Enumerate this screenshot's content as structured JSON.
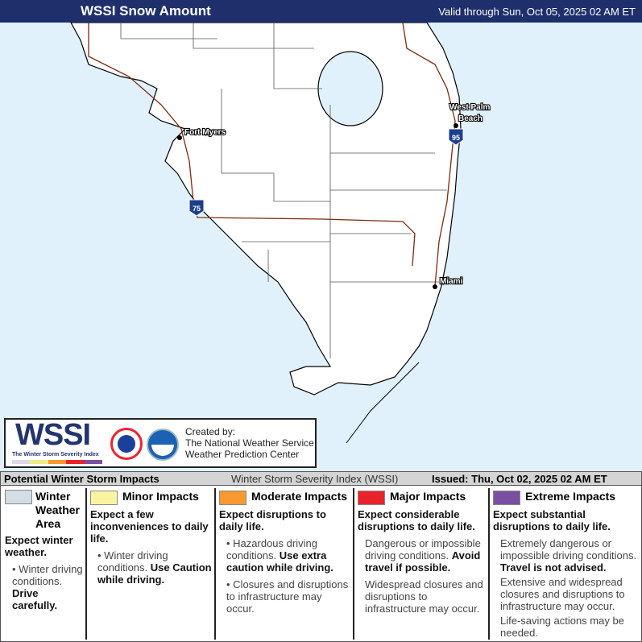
{
  "header": {
    "title": "WSSI Snow Amount",
    "valid": "Valid through Sun, Oct 05, 2025 02 AM ET",
    "bg": "#1e2f6b"
  },
  "map": {
    "ocean_color": "#e1f1fc",
    "land_color": "#ffffff",
    "road_color": "#7a2a10",
    "cities": [
      "Fort Myers",
      "West Palm",
      "Beach",
      "Miami"
    ],
    "shields": [
      "75",
      "95"
    ]
  },
  "logo": {
    "wssi": "WSSI",
    "subtitle": "The Winter Storm Severity Index",
    "created": "Created by:",
    "org1": "The National Weather Service",
    "org2": "Weather Prediction Center",
    "bar_colors": [
      "#d9dbe9",
      "#eded8a",
      "#f7992e",
      "#e8232b",
      "#7b4fa2"
    ]
  },
  "legend": {
    "title": "Potential Winter Storm Impacts",
    "index": "Winter Storm Severity Index (WSSI)",
    "issued": "Issued: Thu, Oct 02, 2025 02 AM ET",
    "cols": [
      {
        "color": "#d3dde6",
        "title": "Winter Weather Area",
        "head": "Expect winter weather.",
        "b1": "Winter driving conditions.",
        "b1b": "Drive carefully."
      },
      {
        "color": "#f8f4a0",
        "title": "Minor Impacts",
        "head": "Expect a few inconveniences to daily life.",
        "b1": "Winter driving conditions.",
        "b1b": "Use Caution while driving."
      },
      {
        "color": "#f7992e",
        "title": "Moderate Impacts",
        "head": "Expect disruptions to daily life.",
        "b1": "Hazardous driving conditions.",
        "b1b": "Use extra caution while driving.",
        "b2": "Closures and disruptions to infrastructure may occur."
      },
      {
        "color": "#e8232b",
        "title": "Major Impacts",
        "head": "Expect considerable disruptions to daily life.",
        "b1": "Dangerous or impossible driving conditions.",
        "b1b": "Avoid travel if possible.",
        "b2": "Widespread closures and disruptions to infrastructure may occur."
      },
      {
        "color": "#7b4fa2",
        "title": "Extreme Impacts",
        "head": "Expect substantial disruptions to daily life.",
        "b1": "Extremely dangerous or impossible driving conditions.",
        "b1b": "Travel is not advised.",
        "b2": "Extensive and widespread closures and disruptions to infrastructure may occur.",
        "b3": "Life-saving actions may be needed."
      }
    ]
  }
}
